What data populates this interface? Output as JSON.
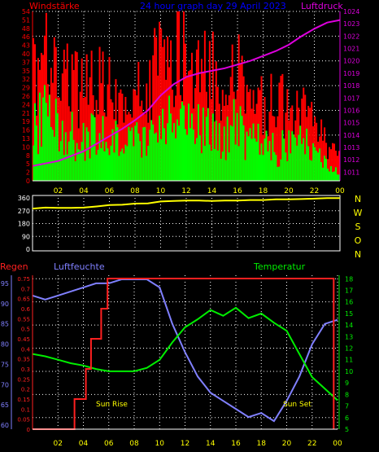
{
  "header": {
    "title": "24 hour graph day 29 April 2023",
    "wind_label": "Windstärke",
    "pressure_label": "Luftdruck"
  },
  "compass": [
    "N",
    "W",
    "S",
    "O",
    "N"
  ],
  "bottom_labels": {
    "rain": "Regen",
    "humidity": "Luftfeuchte",
    "temperature": "Temperatur",
    "sunrise": "Sun Rise",
    "sunset": "Sun Set"
  },
  "colors": {
    "gust": "#ff0000",
    "wind": "#00ff00",
    "pressure": "#dd00dd",
    "direction": "#ffff00",
    "rain": "#ff2020",
    "humidity": "#8080ff",
    "temperature": "#00ee00",
    "title": "#0000ff",
    "tick_text": "#ffff00",
    "grid": "#ffffff"
  },
  "chart_data": [
    {
      "type": "bar",
      "name": "wind_pressure",
      "x_ticks": [
        "02",
        "04",
        "06",
        "08",
        "10",
        "12",
        "14",
        "16",
        "18",
        "20",
        "22",
        "00"
      ],
      "y_left_ticks": [
        "0",
        "2",
        "5",
        "8",
        "10",
        "13",
        "16",
        "19",
        "21",
        "24",
        "26",
        "29",
        "32",
        "35",
        "37",
        "40",
        "43",
        "46",
        "48",
        "51",
        "54"
      ],
      "y_left_range": [
        0,
        54
      ],
      "y_right_ticks": [
        "1011",
        "1012",
        "1013",
        "1014",
        "1015",
        "1016",
        "1017",
        "1018",
        "1019",
        "1020",
        "1021",
        "1022",
        "1023",
        "1024"
      ],
      "y_right_range": [
        1010.3,
        1024
      ],
      "wind_mean_envelope": {
        "hours": [
          0,
          1,
          2,
          3,
          4,
          5,
          6,
          7,
          8,
          9,
          10,
          11,
          12,
          13,
          14,
          15,
          16,
          17,
          18,
          19,
          20,
          21,
          22,
          23,
          24
        ],
        "values": [
          20,
          28,
          22,
          18,
          16,
          22,
          18,
          14,
          16,
          20,
          24,
          26,
          28,
          26,
          20,
          18,
          22,
          16,
          14,
          12,
          14,
          16,
          10,
          6,
          4
        ]
      },
      "wind_gust_envelope": {
        "hours": [
          0,
          1,
          2,
          3,
          4,
          5,
          6,
          7,
          8,
          9,
          10,
          11,
          12,
          13,
          14,
          15,
          16,
          17,
          18,
          19,
          20,
          21,
          22,
          23,
          24
        ],
        "values": [
          40,
          48,
          42,
          36,
          34,
          40,
          36,
          30,
          34,
          40,
          46,
          48,
          48,
          44,
          40,
          36,
          42,
          34,
          32,
          28,
          30,
          32,
          22,
          14,
          10
        ]
      },
      "pressure": {
        "hours": [
          0,
          1,
          2,
          3,
          4,
          5,
          6,
          7,
          8,
          9,
          10,
          11,
          12,
          13,
          14,
          15,
          16,
          17,
          18,
          19,
          20,
          21,
          22,
          23,
          24
        ],
        "values": [
          1011.5,
          1011.7,
          1011.9,
          1012.3,
          1012.7,
          1013.3,
          1013.9,
          1014.5,
          1015.2,
          1016.0,
          1017.2,
          1018.1,
          1018.7,
          1019.0,
          1019.2,
          1019.4,
          1019.7,
          1020.0,
          1020.4,
          1020.8,
          1021.3,
          1022.0,
          1022.6,
          1023.1,
          1023.3
        ]
      }
    },
    {
      "type": "line",
      "name": "wind_direction",
      "y_ticks": [
        "0",
        "90",
        "180",
        "270",
        "360"
      ],
      "y_range": [
        0,
        360
      ],
      "hours": [
        0,
        1,
        2,
        3,
        4,
        5,
        6,
        7,
        8,
        9,
        10,
        11,
        12,
        13,
        14,
        15,
        16,
        17,
        18,
        19,
        20,
        21,
        22,
        23,
        24
      ],
      "values": [
        285,
        292,
        290,
        290,
        292,
        300,
        310,
        312,
        320,
        322,
        335,
        338,
        342,
        342,
        338,
        342,
        342,
        345,
        345,
        350,
        350,
        352,
        355,
        358,
        358
      ]
    },
    {
      "type": "line",
      "name": "rain_humidity_temperature",
      "x_ticks": [
        "02",
        "04",
        "06",
        "08",
        "10",
        "12",
        "14",
        "16",
        "18",
        "20",
        "22",
        "00"
      ],
      "humidity_ticks": [
        "60",
        "65",
        "70",
        "75",
        "80",
        "85",
        "90",
        "95"
      ],
      "humidity_range": [
        59,
        97
      ],
      "rain_ticks": [
        "0",
        "0.05",
        "0.1",
        "0.15",
        "0.2",
        "0.25",
        "0.3",
        "0.35",
        "0.4",
        "0.45",
        "0.5",
        "0.55",
        "0.6",
        "0.65",
        "0.7",
        "0.75"
      ],
      "rain_range": [
        0,
        0.75
      ],
      "temperature_ticks": [
        "5",
        "6",
        "7",
        "8",
        "9",
        "10",
        "11",
        "12",
        "13",
        "14",
        "15",
        "16",
        "17",
        "18"
      ],
      "temperature_range": [
        5,
        18.3
      ],
      "rain": {
        "hours": [
          0,
          3.3,
          3.3,
          4.2,
          4.2,
          4.6,
          4.6,
          5.4,
          5.4,
          5.9,
          5.9,
          23.7,
          23.7
        ],
        "values": [
          0,
          0,
          0.15,
          0.15,
          0.3,
          0.3,
          0.45,
          0.45,
          0.6,
          0.6,
          0.75,
          0.75,
          0
        ]
      },
      "humidity": {
        "hours": [
          0,
          1,
          2,
          3,
          4,
          5,
          6,
          7,
          8,
          9,
          10,
          11,
          12,
          13,
          14,
          15,
          16,
          17,
          18,
          19,
          20,
          21,
          22,
          23,
          24
        ],
        "values": [
          92,
          91,
          92,
          93,
          94,
          95,
          95,
          96,
          96,
          96,
          94,
          85,
          78,
          72,
          68,
          66,
          64,
          62,
          63,
          61,
          66,
          72,
          80,
          85,
          86
        ]
      },
      "temperature": {
        "hours": [
          0,
          1,
          2,
          3,
          4,
          5,
          6,
          7,
          8,
          9,
          10,
          11,
          12,
          13,
          14,
          15,
          16,
          17,
          18,
          19,
          20,
          21,
          22,
          23,
          24
        ],
        "values": [
          11.5,
          11.3,
          11.0,
          10.7,
          10.5,
          10.2,
          10.0,
          10.0,
          10.0,
          10.3,
          11.0,
          12.5,
          13.8,
          14.5,
          15.3,
          14.8,
          15.5,
          14.6,
          15.0,
          14.2,
          13.5,
          11.5,
          9.5,
          8.5,
          7.5
        ]
      }
    }
  ]
}
